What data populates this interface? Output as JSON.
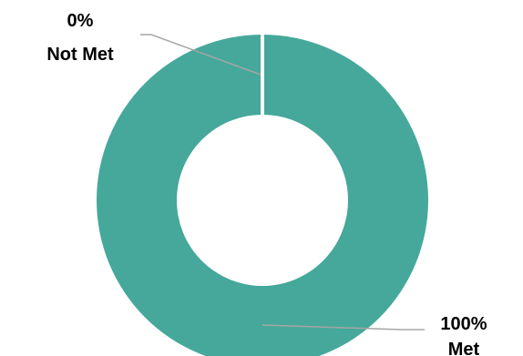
{
  "chart_data": {
    "type": "pie",
    "donut": true,
    "categories": [
      "Not Met",
      "Met"
    ],
    "values": [
      0,
      100
    ],
    "data_labels": [
      {
        "category": "Not Met",
        "percent": "0%",
        "name": "Not Met"
      },
      {
        "category": "Met",
        "percent": "100%",
        "name": "Met"
      }
    ],
    "colors": {
      "Met": "#45a89a",
      "Not Met": "#7f7f7f",
      "separator": "#ffffff",
      "leader_line": "#a6a6a6"
    },
    "title": "",
    "legend": "none"
  }
}
